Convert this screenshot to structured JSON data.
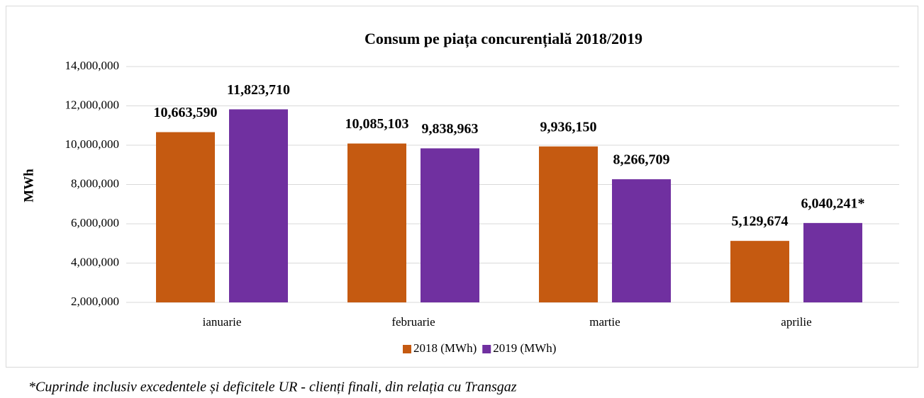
{
  "chart_data": {
    "type": "bar",
    "title": "Consum pe piața concurențială 2018/2019",
    "y_label": "MWh",
    "categories": [
      "ianuarie",
      "februarie",
      "martie",
      "aprilie"
    ],
    "series": [
      {
        "name": "2018 (MWh)",
        "color": "#c55a11",
        "values": [
          10663590,
          10085103,
          9936150,
          5129674
        ],
        "value_labels": [
          "10,663,590",
          "10,085,103",
          "9,936,150",
          "5,129,674"
        ]
      },
      {
        "name": "2019 (MWh)",
        "color": "#7030a0",
        "values": [
          11823710,
          9838963,
          8266709,
          6040241
        ],
        "value_labels": [
          "11,823,710",
          "9,838,963",
          "8,266,709",
          "6,040,241*"
        ]
      }
    ],
    "ylim": [
      2000000,
      14000000
    ],
    "yticks": [
      {
        "value": 2000000,
        "label": "2,000,000"
      },
      {
        "value": 4000000,
        "label": "4,000,000"
      },
      {
        "value": 6000000,
        "label": "6,000,000"
      },
      {
        "value": 8000000,
        "label": "8,000,000"
      },
      {
        "value": 10000000,
        "label": "10,000,000"
      },
      {
        "value": 12000000,
        "label": "12,000,000"
      },
      {
        "value": 14000000,
        "label": "14,000,000"
      }
    ],
    "grid": true,
    "legend": "bottom",
    "footnote": "*Cuprinde inclusiv excedentele și deficitele UR - clienți finali, din relația cu Transgaz"
  }
}
